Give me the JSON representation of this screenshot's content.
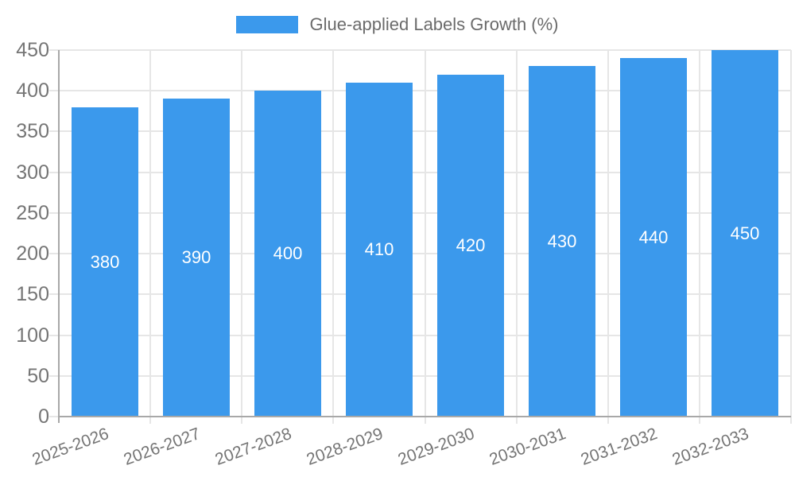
{
  "chart_data": {
    "type": "bar",
    "title": "Glue-applied Labels Growth (%)",
    "categories": [
      "2025-2026",
      "2026-2027",
      "2027-2028",
      "2028-2029",
      "2029-2030",
      "2030-2031",
      "2031-2032",
      "2032-2033"
    ],
    "values": [
      380,
      390,
      400,
      410,
      420,
      430,
      440,
      450
    ],
    "xlabel": "",
    "ylabel": "",
    "ylim": [
      0,
      450
    ],
    "yticks": [
      0,
      50,
      100,
      150,
      200,
      250,
      300,
      350,
      400,
      450
    ],
    "grid": true,
    "legend_position": "top",
    "x_label_rotation_deg": -20,
    "colors": {
      "bar": "#3b99ec",
      "value_label": "#ffffff",
      "axis": "#a8a8a8",
      "gridline": "#e6e6e6",
      "tick_label": "#757575",
      "legend_text": "#6b6b6b",
      "background": "#ffffff"
    }
  }
}
